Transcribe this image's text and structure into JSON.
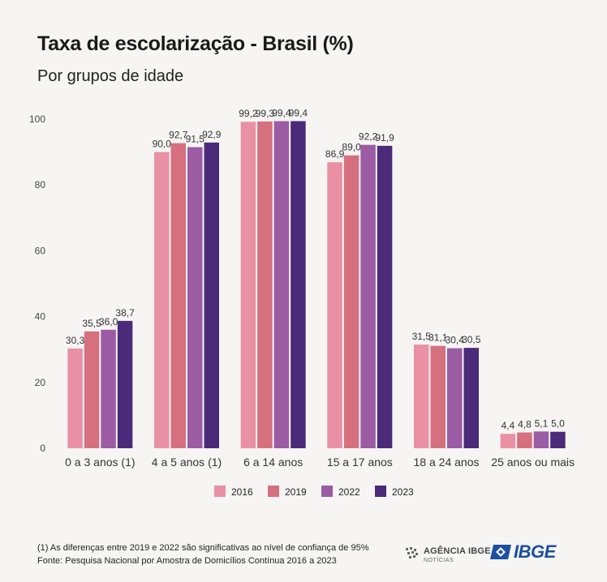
{
  "title": "Taxa de escolarização - Brasil (%)",
  "subtitle": "Por grupos de idade",
  "footnote": {
    "line1": "(1) As diferenças entre 2019 e 2022 são significativas ao nível de confiança de 95%",
    "line2": "Fonte: Pesquisa Nacional por Amostra de Domicílios Contínua 2016 a 2023"
  },
  "logos": {
    "agencia_main": "AGÊNCIA IBGE",
    "agencia_sub": "NOTÍCIAS",
    "ibge": "IBGE"
  },
  "chart_data": {
    "type": "bar",
    "categories": [
      "0 a 3 anos (1)",
      "4 a 5 anos (1)",
      "6 a 14 anos",
      "15 a 17 anos",
      "18 a 24 anos",
      "25 anos ou mais"
    ],
    "series": [
      {
        "name": "2016",
        "color": "#e990a4",
        "values": [
          30.3,
          90.0,
          99.2,
          86.9,
          31.5,
          4.4
        ],
        "labels": [
          "30,3",
          "90,0",
          "99,2",
          "86,9",
          "31,5",
          "4,4"
        ]
      },
      {
        "name": "2019",
        "color": "#d66f7e",
        "values": [
          35.5,
          92.7,
          99.3,
          89.0,
          31.1,
          4.8
        ],
        "labels": [
          "35,5",
          "92,7",
          "99,3",
          "89,0",
          "31,1",
          "4,8"
        ]
      },
      {
        "name": "2022",
        "color": "#9b5ca4",
        "values": [
          36.0,
          91.5,
          99.4,
          92.2,
          30.4,
          5.1
        ],
        "labels": [
          "36,0",
          "91,5",
          "99,4",
          "92,2",
          "30,4",
          "5,1"
        ]
      },
      {
        "name": "2023",
        "color": "#4b2a7a",
        "values": [
          38.7,
          92.9,
          99.4,
          91.9,
          30.5,
          5.0
        ],
        "labels": [
          "38,7",
          "92,9",
          "99,4",
          "91,9",
          "30,5",
          "5,0"
        ]
      }
    ],
    "ylim": [
      0,
      100
    ],
    "yticks": [
      0,
      20,
      40,
      60,
      80,
      100
    ],
    "grid": false,
    "legend_position": "bottom"
  }
}
